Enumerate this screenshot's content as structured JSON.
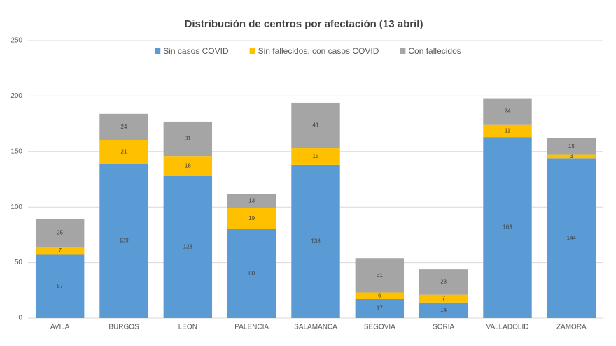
{
  "chart_data": {
    "type": "stacked_bar",
    "title": "Distribución de centros por afectación (13 abril)",
    "categories": [
      "AVILA",
      "BURGOS",
      "LEON",
      "PALENCIA",
      "SALAMANCA",
      "SEGOVIA",
      "SORIA",
      "VALLADOLID",
      "ZAMORA"
    ],
    "series": [
      {
        "name": "Sin casos COVID",
        "color": "#5b9bd5",
        "values": [
          57,
          139,
          128,
          80,
          138,
          17,
          14,
          163,
          144
        ]
      },
      {
        "name": "Sin fallecidos, con casos COVID",
        "color": "#ffc000",
        "values": [
          7,
          21,
          18,
          19,
          15,
          6,
          7,
          11,
          3
        ]
      },
      {
        "name": "Con fallecidos",
        "color": "#a5a5a5",
        "values": [
          25,
          24,
          31,
          13,
          41,
          31,
          23,
          24,
          15
        ]
      }
    ],
    "ylim": [
      0,
      250
    ],
    "yticks": [
      0,
      50,
      100,
      150,
      200,
      250
    ],
    "grid": true,
    "legend": "top"
  }
}
